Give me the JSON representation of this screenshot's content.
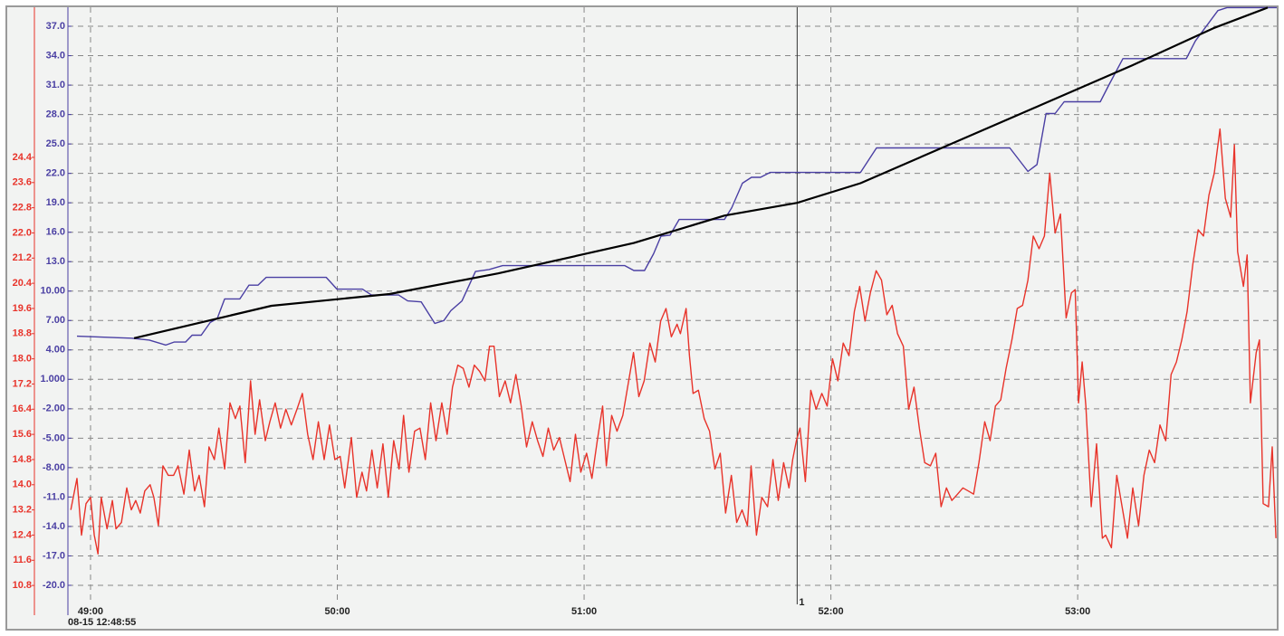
{
  "chart_data": {
    "type": "line",
    "x_start_label": "08-15 12:48:55",
    "xlim": [
      54.5,
      348.4
    ],
    "xticks": [
      {
        "value": 60,
        "label": "49:00"
      },
      {
        "value": 120,
        "label": "50:00"
      },
      {
        "value": 180,
        "label": "51:00"
      },
      {
        "value": 240,
        "label": "52:00"
      },
      {
        "value": 300,
        "label": "53:00"
      }
    ],
    "ylim": [
      -21.94,
      38.94
    ],
    "yticks": [
      {
        "value": 37,
        "label": "37.0"
      },
      {
        "value": 34,
        "label": "34.0"
      },
      {
        "value": 31,
        "label": "31.0"
      },
      {
        "value": 28,
        "label": "28.0"
      },
      {
        "value": 25,
        "label": "25.0"
      },
      {
        "value": 22,
        "label": "22.0"
      },
      {
        "value": 19,
        "label": "19.0"
      },
      {
        "value": 16,
        "label": "16.0"
      },
      {
        "value": 13,
        "label": "13.0"
      },
      {
        "value": 10,
        "label": "10.00"
      },
      {
        "value": 7,
        "label": "7.00"
      },
      {
        "value": 4,
        "label": "4.00"
      },
      {
        "value": 1,
        "label": "1.000"
      },
      {
        "value": -2,
        "label": "-2.00"
      },
      {
        "value": -5,
        "label": "-5.00"
      },
      {
        "value": -8,
        "label": "-8.00"
      },
      {
        "value": -11,
        "label": "-11.0"
      },
      {
        "value": -14,
        "label": "-14.0"
      },
      {
        "value": -17,
        "label": "-17.0"
      },
      {
        "value": -20,
        "label": "-20.0"
      }
    ],
    "y2lim": [
      10.2,
      29.17
    ],
    "y2ticks": [
      24.4,
      23.6,
      22.8,
      {
        "value": 22,
        "label": "22.0"
      },
      21.2,
      20.4,
      19.6,
      18.8,
      {
        "value": 18,
        "label": "18.0"
      },
      17.2,
      16.4,
      15.6,
      14.8,
      {
        "value": 14,
        "label": "14.0"
      },
      13.2,
      12.4,
      11.6,
      10.8
    ],
    "y_color": "#4a3fa3",
    "y2_color": "#e8332a",
    "grid": true,
    "cursor": {
      "x": 231.8,
      "label": "1"
    },
    "series": [
      {
        "color": "#4a3fa3",
        "axis": "y",
        "x": [
          56.7,
          69.9,
          74.3,
          78.3,
          80.3,
          83.1,
          84.7,
          86.9,
          89.1,
          90.8,
          92.6,
          96.3,
          98.5,
          100.7,
          102.7,
          117.3,
          119.9,
          126.1,
          128.3,
          134.9,
          137.1,
          140.4,
          143.7,
          145.9,
          147.6,
          150.3,
          153.6,
          156.9,
          160.2,
          189.9,
          192.1,
          194.7,
          196.9,
          198.7,
          200.9,
          203.1,
          214.1,
          215.9,
          218.5,
          220.7,
          222.9,
          225.2,
          247.2,
          251.1,
          283.5,
          285.7,
          287.9,
          290.1,
          292.3,
          294.5,
          296.7,
          305.5,
          307.7,
          311.0,
          326.4,
          328.6,
          334.1,
          336.3,
          348.4
        ],
        "values": [
          5.4,
          5.2,
          5.0,
          4.5,
          4.8,
          4.8,
          5.5,
          5.5,
          6.8,
          7.2,
          9.2,
          9.2,
          10.6,
          10.6,
          11.4,
          11.4,
          10.2,
          10.2,
          9.6,
          9.6,
          9.0,
          8.9,
          6.7,
          7.0,
          8.0,
          9.0,
          12.0,
          12.2,
          12.6,
          12.6,
          12.1,
          12.1,
          13.8,
          15.6,
          15.7,
          17.3,
          17.3,
          18.5,
          21.0,
          21.6,
          21.6,
          22.1,
          22.1,
          24.6,
          24.6,
          23.4,
          22.2,
          22.9,
          28.1,
          28.1,
          29.3,
          29.3,
          31.1,
          33.7,
          33.7,
          35.5,
          38.6,
          38.9,
          38.9
        ]
      },
      {
        "color": "#000000",
        "axis": "y",
        "x": [
          70.6,
          104.0,
          132.7,
          159.1,
          192.1,
          214.1,
          231.8,
          247.2,
          269.2,
          291.2,
          313.2,
          333.0,
          346.2
        ],
        "values": [
          5.2,
          8.5,
          9.7,
          11.8,
          14.9,
          17.7,
          19.0,
          21.0,
          25.0,
          29.0,
          33.0,
          36.8,
          38.9
        ]
      },
      {
        "color": "#e8332a",
        "axis": "y2",
        "x": [
          55.2,
          56.7,
          57.8,
          58.9,
          60.0,
          60.9,
          61.8,
          62.6,
          64.0,
          65.3,
          66.2,
          67.5,
          68.8,
          69.9,
          71.0,
          72.1,
          73.2,
          74.5,
          75.4,
          76.5,
          77.6,
          78.9,
          80.2,
          81.3,
          82.7,
          84.0,
          85.3,
          86.4,
          87.7,
          88.8,
          90.1,
          91.2,
          92.6,
          93.9,
          95.2,
          96.3,
          97.6,
          98.9,
          100.0,
          101.1,
          102.5,
          103.6,
          104.9,
          106.2,
          107.5,
          108.8,
          110.2,
          111.5,
          112.8,
          114.1,
          115.4,
          116.8,
          118.1,
          119.4,
          120.7,
          121.8,
          123.4,
          124.7,
          126.0,
          127.1,
          128.4,
          129.7,
          131.1,
          132.4,
          133.7,
          135.0,
          136.1,
          137.4,
          138.8,
          140.1,
          141.4,
          142.7,
          144.0,
          145.4,
          146.7,
          148.0,
          149.3,
          150.6,
          152.0,
          153.3,
          154.6,
          155.9,
          157.0,
          158.1,
          159.4,
          160.8,
          162.1,
          163.4,
          164.7,
          166.0,
          167.4,
          168.7,
          170.0,
          171.3,
          172.6,
          174.0,
          175.3,
          176.6,
          177.9,
          179.2,
          180.6,
          181.9,
          183.2,
          184.5,
          185.4,
          186.7,
          188.0,
          189.4,
          190.7,
          192.0,
          193.3,
          194.6,
          196.0,
          197.3,
          198.6,
          199.9,
          201.2,
          202.6,
          203.4,
          204.8,
          205.6,
          206.5,
          207.8,
          209.2,
          210.5,
          211.8,
          213.1,
          214.4,
          215.8,
          217.1,
          218.4,
          219.7,
          220.6,
          221.9,
          223.2,
          224.6,
          225.9,
          227.2,
          228.5,
          229.8,
          230.7,
          231.6,
          232.5,
          233.8,
          235.1,
          236.4,
          237.8,
          239.1,
          240.4,
          241.7,
          243.0,
          244.4,
          245.7,
          247.0,
          248.3,
          249.6,
          251.0,
          252.3,
          253.6,
          254.9,
          256.2,
          257.6,
          258.9,
          260.2,
          261.5,
          262.8,
          264.2,
          265.5,
          266.8,
          268.1,
          269.4,
          270.8,
          272.1,
          273.4,
          274.7,
          276.0,
          277.4,
          278.7,
          280.0,
          281.3,
          282.6,
          284.0,
          285.3,
          286.6,
          287.9,
          289.2,
          290.6,
          291.9,
          293.2,
          294.5,
          295.8,
          297.2,
          298.5,
          299.4,
          300.2,
          301.1,
          302.0,
          303.3,
          304.6,
          306.0,
          306.8,
          308.2,
          309.5,
          310.8,
          312.1,
          313.4,
          314.8,
          316.1,
          317.4,
          318.7,
          320.0,
          321.4,
          322.7,
          324.0,
          325.3,
          326.6,
          328.0,
          329.3,
          330.6,
          331.9,
          333.2,
          334.6,
          335.9,
          337.2,
          338.1,
          338.9,
          340.3,
          341.2,
          342.0,
          343.4,
          344.2,
          345.1,
          346.4,
          347.3,
          348.2
        ],
        "values": [
          13.2,
          14.2,
          12.4,
          13.4,
          13.6,
          12.4,
          11.8,
          13.6,
          12.6,
          13.5,
          12.6,
          12.8,
          13.9,
          13.2,
          13.5,
          13.1,
          13.8,
          14.0,
          13.6,
          12.7,
          14.6,
          14.3,
          14.3,
          14.6,
          13.7,
          15.1,
          13.8,
          14.3,
          13.3,
          15.2,
          14.8,
          15.8,
          14.5,
          16.6,
          16.1,
          16.5,
          14.7,
          17.3,
          15.6,
          16.7,
          15.4,
          16.0,
          16.6,
          15.8,
          16.4,
          15.9,
          16.4,
          16.9,
          15.6,
          14.8,
          16.0,
          14.8,
          15.9,
          14.8,
          14.9,
          13.9,
          15.5,
          13.6,
          14.4,
          13.8,
          15.1,
          13.9,
          15.3,
          13.6,
          15.4,
          14.5,
          16.2,
          14.4,
          15.7,
          15.8,
          14.8,
          16.6,
          15.4,
          16.6,
          15.6,
          17.1,
          17.8,
          17.7,
          17.1,
          17.8,
          17.6,
          17.3,
          18.4,
          18.4,
          16.8,
          17.3,
          16.6,
          17.5,
          16.5,
          15.2,
          16.0,
          15.4,
          14.9,
          15.8,
          15.1,
          15.5,
          14.8,
          14.1,
          15.6,
          14.4,
          15.0,
          14.2,
          15.4,
          16.5,
          14.6,
          16.2,
          15.7,
          16.2,
          17.2,
          18.2,
          16.8,
          17.3,
          18.5,
          17.9,
          19.2,
          19.6,
          18.7,
          19.1,
          18.8,
          19.6,
          18.1,
          16.9,
          17.0,
          16.1,
          15.7,
          14.5,
          15.0,
          13.1,
          14.3,
          12.8,
          13.2,
          12.7,
          14.6,
          12.4,
          13.6,
          13.3,
          14.8,
          13.5,
          14.7,
          13.9,
          14.8,
          15.4,
          15.8,
          14.1,
          17.0,
          16.4,
          16.9,
          16.5,
          18.0,
          17.3,
          18.5,
          18.1,
          19.5,
          20.3,
          19.2,
          20.1,
          20.8,
          20.5,
          19.4,
          19.7,
          18.8,
          18.4,
          16.4,
          17.1,
          15.8,
          14.7,
          14.6,
          15.0,
          13.3,
          13.9,
          13.5,
          13.7,
          13.9,
          13.8,
          13.7,
          14.7,
          16.0,
          15.4,
          16.5,
          16.7,
          17.7,
          18.6,
          19.6,
          19.7,
          20.5,
          21.9,
          21.5,
          21.9,
          23.9,
          22.0,
          22.6,
          19.3,
          20.1,
          20.2,
          16.6,
          17.9,
          16.5,
          13.3,
          15.3,
          12.3,
          12.4,
          12.0,
          14.3,
          13.3,
          12.3,
          13.9,
          12.7,
          14.3,
          15.1,
          14.7,
          15.9,
          15.4,
          17.5,
          17.9,
          18.6,
          19.5,
          21.0,
          22.1,
          21.9,
          23.2,
          23.9,
          25.3,
          23.1,
          22.5,
          24.8,
          21.4,
          20.3,
          21.3,
          16.6,
          18.2,
          18.6,
          13.4,
          13.3,
          15.2,
          12.3
        ]
      }
    ]
  }
}
